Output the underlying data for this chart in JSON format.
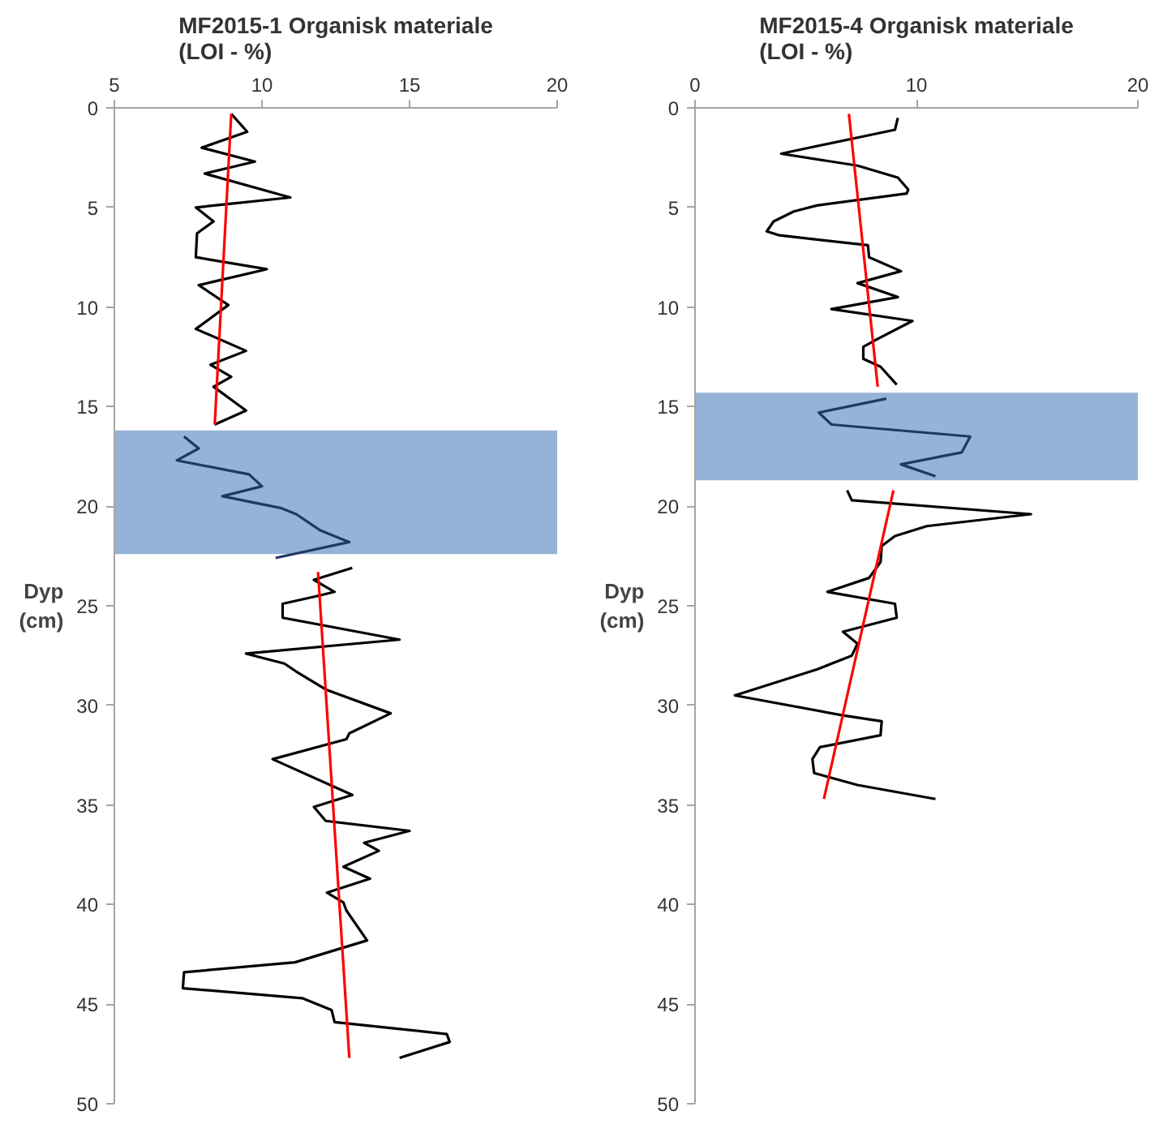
{
  "chart_data": [
    {
      "type": "line",
      "title": "MF2015-1 Organisk materiale\n(LOI - %)",
      "ylabel": "Dyp\n(cm)",
      "xlim": [
        5,
        20
      ],
      "xticks": [
        5,
        10,
        15,
        20
      ],
      "ylim": [
        50,
        0
      ],
      "yticks": [
        0,
        5,
        10,
        15,
        20,
        25,
        30,
        35,
        40,
        45,
        50
      ],
      "grid": false,
      "bands": [
        {
          "axis": "y",
          "from": 16.2,
          "to": 22.4,
          "color": "#95b3d7"
        }
      ],
      "series": [
        {
          "color": "#000000",
          "x": [
            8.96,
            9.5,
            7.96,
            9.76,
            8.06,
            10.96,
            7.76,
            8.36,
            7.8,
            7.76,
            10.16,
            7.86,
            8.86,
            7.76,
            9.46,
            8.26,
            8.96,
            8.36,
            9.46,
            8.4
          ],
          "values": [
            0.3,
            1.2,
            2.0,
            2.7,
            3.3,
            4.5,
            5.0,
            5.7,
            6.3,
            7.5,
            8.1,
            8.9,
            9.9,
            11.1,
            12.2,
            12.9,
            13.5,
            14.0,
            15.2,
            15.9
          ]
        },
        {
          "color": "#1f3864",
          "x": [
            7.36,
            7.86,
            7.12,
            9.56,
            10.0,
            8.66,
            10.66,
            11.16,
            11.96,
            12.96,
            10.46
          ],
          "values": [
            16.5,
            17.1,
            17.7,
            18.4,
            19.0,
            19.5,
            20.1,
            20.4,
            21.2,
            21.8,
            22.6
          ]
        },
        {
          "color": "#000000",
          "x": [
            13.06,
            11.76,
            12.46,
            11.9,
            10.7,
            10.7,
            14.66,
            9.46,
            10.76,
            11.16,
            12.16,
            14.36,
            12.96,
            12.86,
            10.36,
            13.06,
            11.76,
            12.16,
            15.0,
            13.46,
            13.96,
            12.76,
            13.66,
            12.2,
            12.76,
            12.86,
            13.56,
            11.12,
            7.36,
            7.32,
            11.36,
            12.36,
            12.46,
            16.26,
            16.36,
            14.66
          ],
          "values": [
            23.1,
            23.7,
            24.3,
            24.5,
            24.9,
            25.6,
            26.7,
            27.4,
            27.9,
            28.3,
            29.2,
            30.4,
            31.4,
            31.7,
            32.7,
            34.5,
            35.1,
            35.8,
            36.3,
            36.9,
            37.3,
            38.1,
            38.7,
            39.4,
            39.9,
            40.3,
            41.8,
            42.9,
            43.4,
            44.2,
            44.7,
            45.3,
            45.9,
            46.5,
            46.9,
            47.7
          ]
        },
        {
          "color": "#ff0000",
          "x": [
            8.96,
            8.4
          ],
          "values": [
            0.3,
            15.9
          ]
        },
        {
          "color": "#ff0000",
          "x": [
            11.9,
            12.96
          ],
          "values": [
            23.3,
            47.7
          ]
        }
      ]
    },
    {
      "type": "line",
      "title": "MF2015-4 Organisk materiale\n(LOI - %)",
      "ylabel": "Dyp\n(cm)",
      "xlim": [
        0,
        20
      ],
      "xticks": [
        0,
        10,
        20
      ],
      "ylim": [
        50,
        0
      ],
      "yticks": [
        0,
        5,
        10,
        15,
        20,
        25,
        30,
        35,
        40,
        45,
        50
      ],
      "grid": false,
      "bands": [
        {
          "axis": "y",
          "from": 14.3,
          "to": 18.7,
          "color": "#95b3d7"
        }
      ],
      "series": [
        {
          "color": "#000000",
          "x": [
            9.16,
            9.03,
            3.89,
            7.34,
            9.16,
            9.63,
            9.56,
            5.5,
            4.46,
            3.55,
            3.24,
            3.81,
            7.81,
            7.86,
            9.3,
            7.34,
            9.16,
            6.16,
            9.82,
            8.25,
            7.6,
            7.6,
            8.38,
            9.11
          ],
          "values": [
            0.5,
            1.1,
            2.3,
            2.9,
            3.5,
            4.1,
            4.3,
            4.9,
            5.2,
            5.7,
            6.2,
            6.4,
            6.9,
            7.5,
            8.2,
            8.8,
            9.5,
            10.1,
            10.7,
            11.6,
            12.0,
            12.6,
            13.0,
            13.9
          ]
        },
        {
          "color": "#1f3864",
          "x": [
            8.64,
            5.59,
            6.16,
            12.43,
            12.04,
            9.3,
            10.86
          ],
          "values": [
            14.6,
            15.3,
            15.9,
            16.5,
            17.3,
            17.9,
            18.5
          ]
        },
        {
          "color": "#000000",
          "x": [
            6.87,
            7.08,
            15.17,
            10.47,
            9.03,
            8.43,
            8.38,
            7.86,
            5.98,
            9.03,
            9.11,
            6.68,
            7.34,
            7.08,
            5.5,
            1.8,
            6.68,
            8.43,
            8.38,
            5.64,
            5.3,
            5.38,
            7.34,
            10.86
          ],
          "values": [
            19.2,
            19.7,
            20.4,
            21.0,
            21.5,
            22.0,
            22.8,
            23.6,
            24.3,
            24.9,
            25.6,
            26.3,
            26.9,
            27.5,
            28.2,
            29.5,
            30.5,
            30.8,
            31.5,
            32.1,
            32.7,
            33.4,
            34.0,
            34.7
          ]
        },
        {
          "color": "#ff0000",
          "x": [
            6.95,
            8.25
          ],
          "values": [
            0.3,
            14.0
          ]
        },
        {
          "color": "#ff0000",
          "x": [
            8.96,
            5.82
          ],
          "values": [
            19.2,
            34.7
          ]
        }
      ]
    }
  ]
}
